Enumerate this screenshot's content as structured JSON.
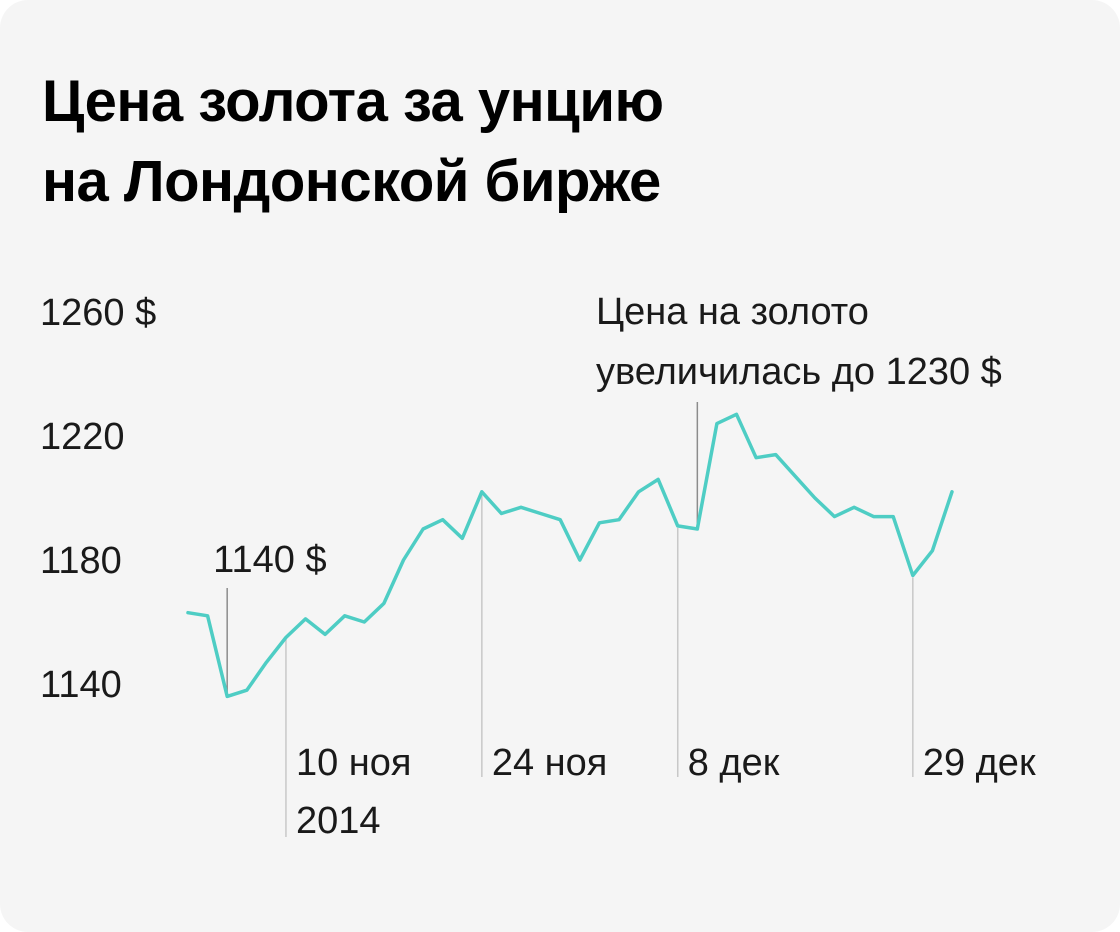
{
  "title_lines": [
    "Цена золота за унцию",
    "на Лондонской бирже"
  ],
  "colors": {
    "background": "#f5f5f5",
    "line": "#4ecdc4",
    "guide": "#c8c8c8",
    "annotation_guide": "#8c8c8c",
    "text": "#1a1a1a"
  },
  "chart_data": {
    "type": "line",
    "title": "Цена золота за унцию на Лондонской бирже",
    "xlabel": "",
    "ylabel": "",
    "ylim": [
      1140,
      1260
    ],
    "yticks": [
      {
        "value": 1260,
        "label": "1260 $"
      },
      {
        "value": 1220,
        "label": "1220"
      },
      {
        "value": 1180,
        "label": "1180"
      },
      {
        "value": 1140,
        "label": "1140"
      }
    ],
    "grid": false,
    "legend": "none",
    "series": [
      {
        "values": [
          1163,
          1162,
          1136,
          1138,
          1147,
          1155,
          1161,
          1156,
          1162,
          1160,
          1166,
          1180,
          1190,
          1193,
          1187,
          1202,
          1195,
          1197,
          1195,
          1193,
          1180,
          1192,
          1193,
          1202,
          1206,
          1191,
          1190,
          1224,
          1227,
          1213,
          1214,
          1207,
          1200,
          1194,
          1197,
          1194,
          1194,
          1175,
          1183,
          1202
        ]
      }
    ],
    "x_labels": [
      {
        "index": 5,
        "lines": [
          "10 ноя",
          "2014"
        ]
      },
      {
        "index": 15,
        "lines": [
          "24 ноя"
        ]
      },
      {
        "index": 25,
        "lines": [
          "8 дек"
        ]
      },
      {
        "index": 37,
        "lines": [
          "29 дек"
        ]
      }
    ],
    "annotations": [
      {
        "index": 2,
        "lines": [
          "1140 $"
        ]
      },
      {
        "index": 26,
        "lines": [
          "Цена на золото",
          "увеличилась до 1230 $"
        ]
      }
    ]
  }
}
